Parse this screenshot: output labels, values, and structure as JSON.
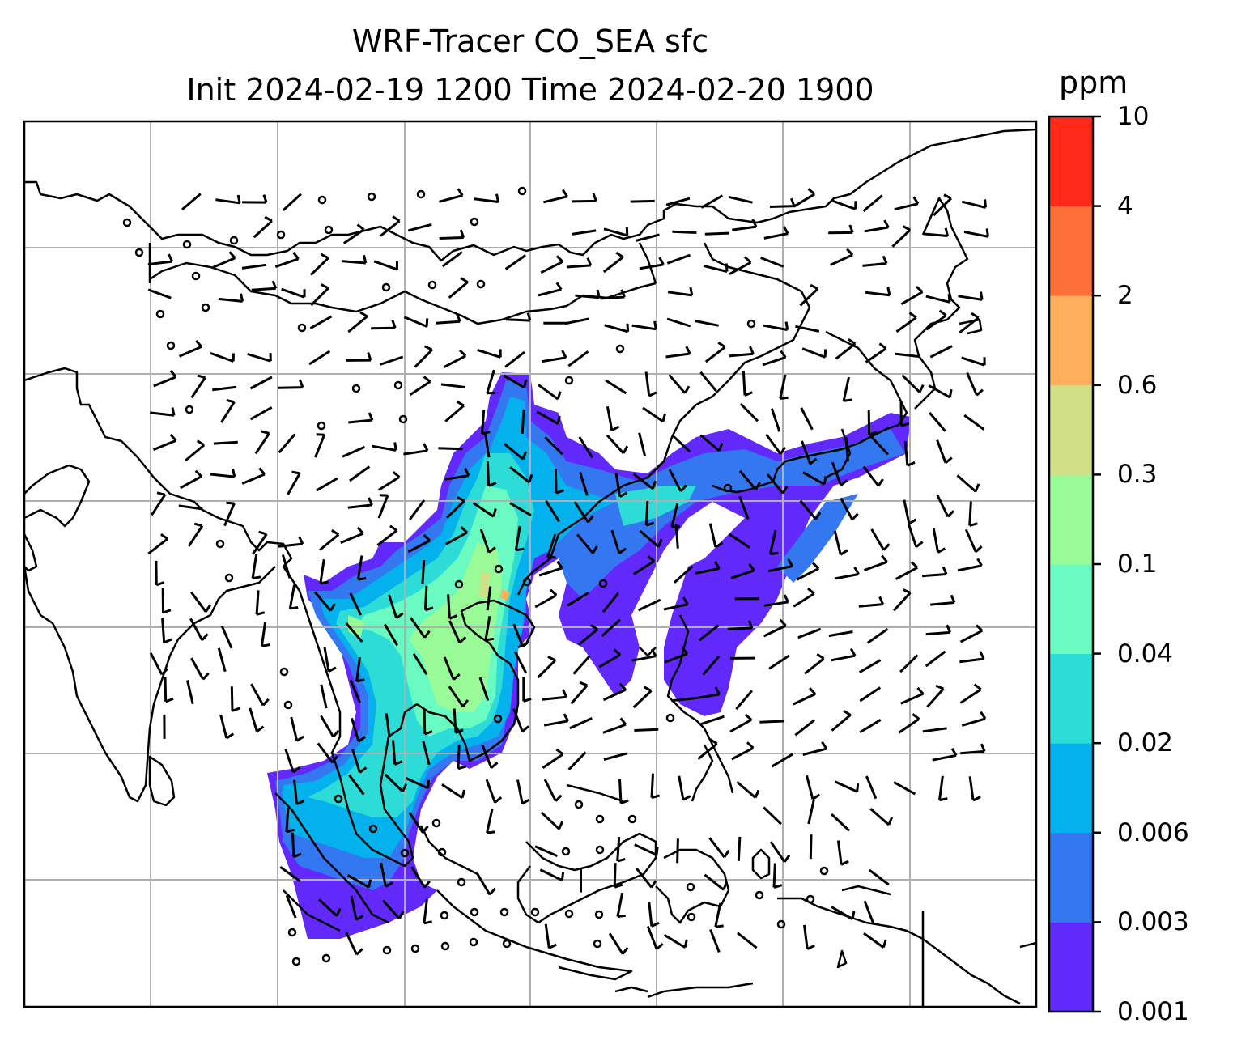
{
  "title": {
    "line1": "WRF-Tracer CO_SEA sfc",
    "line2": "Init 2024-02-19 1200 Time 2024-02-20 1900"
  },
  "colorbar": {
    "unit": "ppm",
    "levels": [
      "0.001",
      "0.003",
      "0.006",
      "0.02",
      "0.04",
      "0.1",
      "0.3",
      "0.6",
      "2",
      "4",
      "10"
    ],
    "colors": [
      "#6129fb",
      "#3377f1",
      "#03b1ec",
      "#2ddcd6",
      "#69fbc2",
      "#99fb98",
      "#d1e087",
      "#fdaf5c",
      "#fe6e39",
      "#ff2a19"
    ]
  },
  "map": {
    "region": "East and Southeast Asia",
    "gridlines": true,
    "overlay": "surface wind barbs",
    "coastline_color": "#000000",
    "grid_color": "#b0b0b0"
  }
}
